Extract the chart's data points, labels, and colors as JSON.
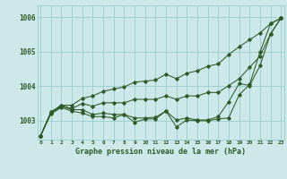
{
  "title": "Graphe pression niveau de la mer (hPa)",
  "background_color": "#cce8e8",
  "grid_color": "#99cccc",
  "line_color": "#2d5a27",
  "xlim": [
    -0.3,
    23.3
  ],
  "ylim": [
    1002.45,
    1006.35
  ],
  "yticks": [
    1003,
    1004,
    1005,
    1006
  ],
  "ytick_labels": [
    "1003",
    "1004",
    "1005",
    "1006"
  ],
  "series": [
    [
      1002.55,
      1003.2,
      1003.38,
      1003.28,
      1003.22,
      1003.12,
      1003.12,
      1003.08,
      1003.18,
      1002.95,
      1003.05,
      1003.05,
      1003.28,
      1002.82,
      1003.02,
      1003.0,
      1003.0,
      1003.05,
      1003.08,
      1003.75,
      1004.05,
      1005.0,
      1005.82,
      1005.98
    ],
    [
      1002.55,
      1003.22,
      1003.42,
      1003.32,
      1003.32,
      1003.18,
      1003.22,
      1003.18,
      1003.18,
      1003.08,
      1003.08,
      1003.1,
      1003.28,
      1003.02,
      1003.08,
      1003.02,
      1003.02,
      1003.12,
      1003.55,
      1004.08,
      1004.02,
      1004.6,
      1005.52,
      1005.98
    ],
    [
      1002.55,
      1003.25,
      1003.45,
      1003.35,
      1003.5,
      1003.42,
      1003.52,
      1003.52,
      1003.52,
      1003.62,
      1003.62,
      1003.62,
      1003.72,
      1003.62,
      1003.72,
      1003.72,
      1003.82,
      1003.82,
      1004.02,
      1004.22,
      1004.55,
      1004.88,
      1005.52,
      1005.98
    ],
    [
      1002.55,
      1003.25,
      1003.45,
      1003.45,
      1003.65,
      1003.72,
      1003.85,
      1003.92,
      1003.98,
      1004.12,
      1004.15,
      1004.18,
      1004.35,
      1004.22,
      1004.38,
      1004.45,
      1004.58,
      1004.65,
      1004.92,
      1005.15,
      1005.35,
      1005.55,
      1005.82,
      1005.98
    ]
  ]
}
